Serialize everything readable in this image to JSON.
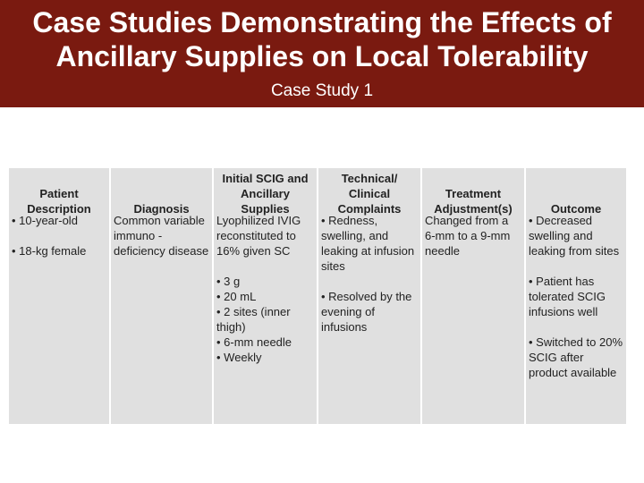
{
  "title": "Case Studies Demonstrating the Effects of Ancillary Supplies on Local Tolerability",
  "subtitle": "Case Study 1",
  "table": {
    "columns": [
      {
        "header": "Patient Description",
        "cells": [
          "• 10-year-old",
          "• 18-kg female"
        ]
      },
      {
        "header": "Diagnosis",
        "cells": [
          "Common variable immuno -deficiency disease"
        ]
      },
      {
        "header": "Initial SCIG and Ancillary Supplies",
        "cells": [
          "Lyophilized IVIG reconstituted to 16% given SC",
          "• 3 g\n• 20 mL\n• 2 sites (inner thigh)\n• 6-mm needle\n• Weekly"
        ]
      },
      {
        "header": "Technical/ Clinical Complaints",
        "cells": [
          "• Redness, swelling, and leaking at infusion sites",
          "• Resolved by the evening of infusions"
        ]
      },
      {
        "header": "Treatment Adjustment(s)",
        "cells": [
          "Changed from a 6-mm to a 9-mm needle"
        ]
      },
      {
        "header": "Outcome",
        "cells": [
          "• Decreased swelling and leaking from sites",
          "• Patient has tolerated SCIG infusions well",
          "• Switched to 20% SCIG after product available"
        ]
      }
    ]
  }
}
